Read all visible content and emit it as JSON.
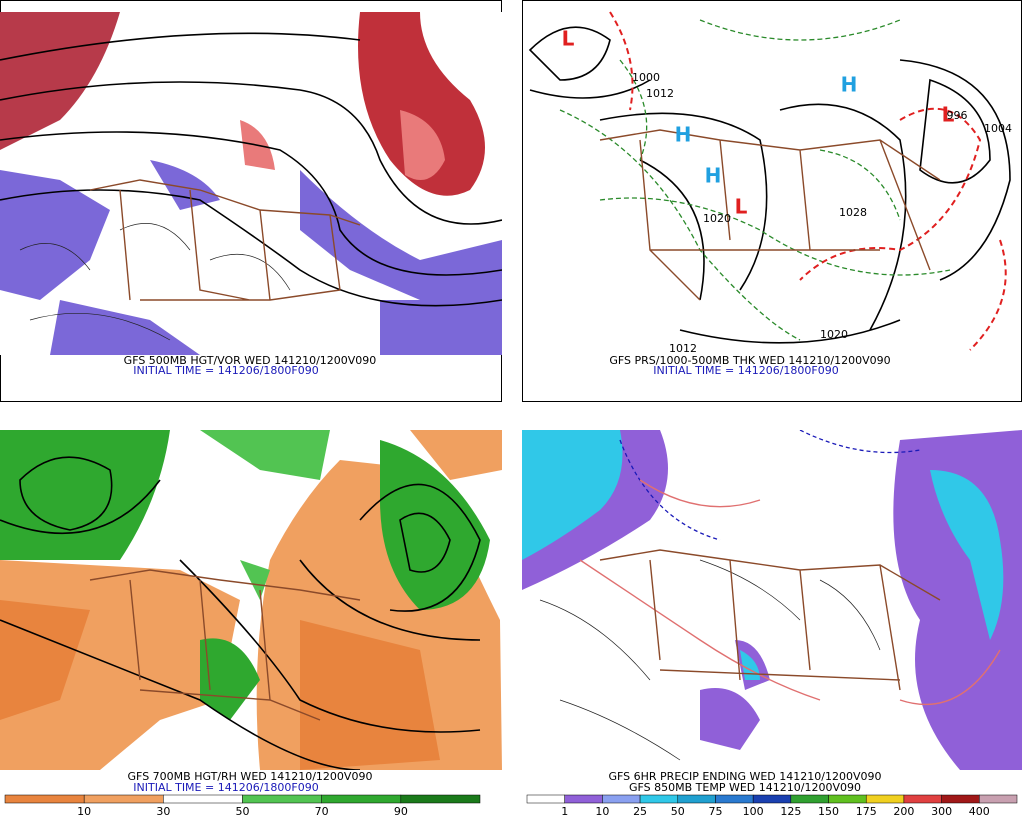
{
  "panels": [
    {
      "captions": [
        "GFS 500MB HGT/VOR WED 141210/1200V090"
      ],
      "initial": "INITIAL TIME = 141206/1800F090"
    },
    {
      "captions": [
        "GFS PRS/1000-500MB THK WED 141210/1200V090"
      ],
      "initial": "INITIAL TIME = 141206/1800F090",
      "labels": [
        "L",
        "H",
        "H",
        "H",
        "L",
        "L",
        "1020",
        "1028",
        "1004",
        "1012",
        "1020",
        "996",
        "1000",
        "1012"
      ]
    },
    {
      "captions": [
        "GFS 700MB HGT/RH WED 141210/1200V090"
      ],
      "initial": "INITIAL TIME = 141206/1800F090",
      "colorbar": {
        "labels": [
          "10",
          "30",
          "50",
          "70",
          "90"
        ]
      }
    },
    {
      "captions": [
        "GFS 6HR PRECIP ENDING WED 141210/1200V090",
        "GFS 850MB TEMP WED 141210/1200V090"
      ],
      "colorbar": {
        "labels": [
          "1",
          "10",
          "25",
          "50",
          "75",
          "100",
          "125",
          "150",
          "175",
          "200",
          "300",
          "400"
        ]
      }
    }
  ]
}
